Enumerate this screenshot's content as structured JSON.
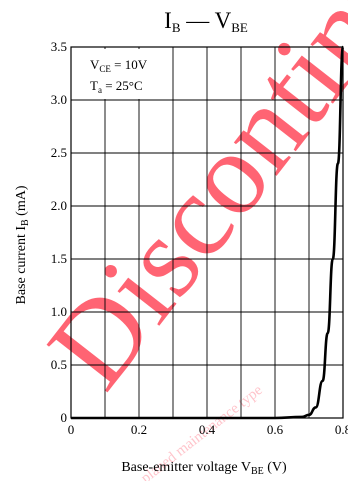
{
  "chart_data": {
    "type": "line",
    "title": {
      "main": "I",
      "main_sub": "B",
      "dash": " — ",
      "main2": "V",
      "main2_sub": "BE"
    },
    "conditions": [
      {
        "base": "V",
        "sub": "CE",
        "rest": " = 10V"
      },
      {
        "base": "T",
        "sub": "a",
        "rest": " = 25°C"
      }
    ],
    "ylabel": {
      "text": "Base current  I",
      "sub": "B",
      "unit": "  (mA)"
    },
    "xlabel": {
      "text": "Base-emitter voltage  V",
      "sub": "BE",
      "unit": "  (V)"
    },
    "xlim": [
      0,
      0.8
    ],
    "ylim": [
      0,
      3.5
    ],
    "x_ticks": [
      0,
      0.2,
      0.4,
      0.6,
      0.8
    ],
    "x_tick_labels": [
      "0",
      "0.2",
      "0.4",
      "0.6",
      "0.8"
    ],
    "y_ticks": [
      0,
      0.5,
      1.0,
      1.5,
      2.0,
      2.5,
      3.0,
      3.5
    ],
    "y_tick_labels": [
      "0",
      "0.5",
      "1.0",
      "1.5",
      "2.0",
      "2.5",
      "3.0",
      "3.5"
    ],
    "x_gridlines": [
      0.1,
      0.2,
      0.3,
      0.4,
      0.5,
      0.6,
      0.7
    ],
    "y_gridlines": [
      0.5,
      1.0,
      1.5,
      2.0,
      2.5,
      3.0
    ],
    "grid": true,
    "series": [
      {
        "x": [
          0.0,
          0.3,
          0.6,
          0.68,
          0.7,
          0.72,
          0.74,
          0.755,
          0.77,
          0.785,
          0.8
        ],
        "y": [
          0.0,
          0.0,
          0.0,
          0.01,
          0.03,
          0.1,
          0.35,
          0.8,
          1.5,
          2.4,
          3.5
        ]
      }
    ],
    "line_color": "#000000",
    "watermark_color": "#ff4b5c"
  }
}
